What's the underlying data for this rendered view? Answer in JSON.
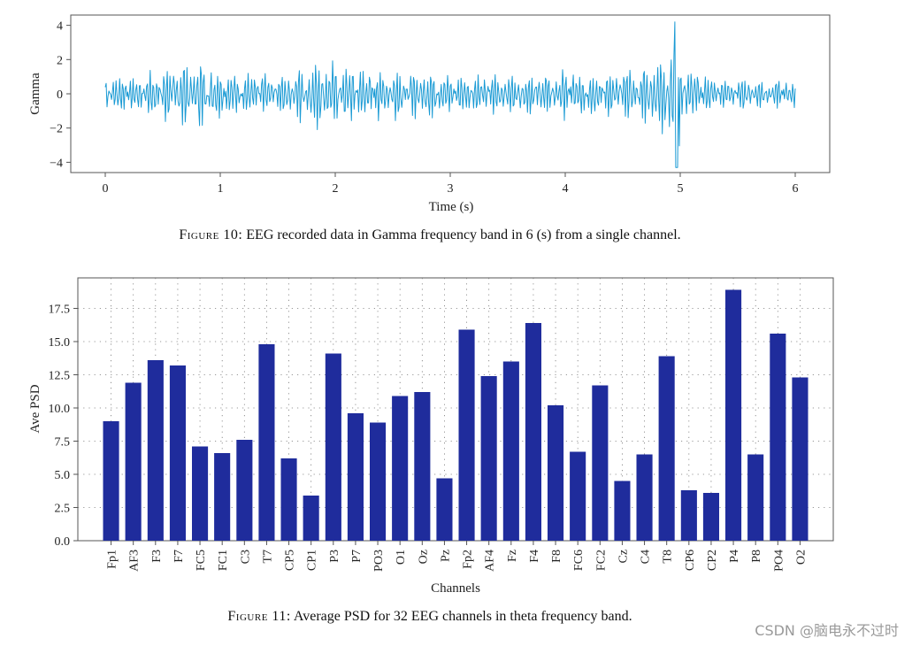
{
  "figure10": {
    "caption_label": "Figure 10:",
    "caption_text": " EEG recorded data in Gamma frequency band in 6 (s) from a single channel.",
    "chart_data": {
      "type": "line",
      "title": "",
      "xlabel": "Time (s)",
      "ylabel": "Gamma",
      "xlim": [
        -0.3,
        6.3
      ],
      "ylim": [
        -4.6,
        4.6
      ],
      "xticks": [
        0,
        1,
        2,
        3,
        4,
        5,
        6
      ],
      "yticks": [
        -4,
        -2,
        0,
        2,
        4
      ],
      "line_color": "#1a9ad4",
      "sample_rate_hz": 128,
      "duration_s": 6,
      "envelope": {
        "t": [
          0.0,
          0.3,
          0.45,
          0.6,
          0.7,
          0.8,
          1.0,
          1.3,
          1.6,
          1.8,
          1.9,
          2.0,
          2.2,
          2.5,
          2.8,
          3.0,
          3.3,
          3.6,
          3.8,
          4.0,
          4.3,
          4.6,
          4.75,
          4.85,
          4.95,
          5.0,
          5.1,
          5.3,
          5.6,
          6.0
        ],
        "amp": [
          0.9,
          1.1,
          1.2,
          1.7,
          2.0,
          1.9,
          1.2,
          1.0,
          1.2,
          1.6,
          2.0,
          1.7,
          1.4,
          1.2,
          1.3,
          1.1,
          1.0,
          1.1,
          1.1,
          1.3,
          1.1,
          1.4,
          1.8,
          1.9,
          3.9,
          2.1,
          1.3,
          0.9,
          0.8,
          0.7
        ]
      }
    }
  },
  "figure11": {
    "caption_label": "Figure 11:",
    "caption_text": " Average PSD for 32 EEG channels in theta frequency band.",
    "chart_data": {
      "type": "bar",
      "title": "",
      "xlabel": "Channels",
      "ylabel": "Ave PSD",
      "ylim": [
        0,
        19.8
      ],
      "yticks": [
        0.0,
        2.5,
        5.0,
        7.5,
        10.0,
        12.5,
        15.0,
        17.5
      ],
      "ytick_labels": [
        "0.0",
        "2.5",
        "5.0",
        "7.5",
        "10.0",
        "12.5",
        "15.0",
        "17.5"
      ],
      "grid": "dotted",
      "bar_color": "#1f2c9c",
      "categories": [
        "Fp1",
        "AF3",
        "F3",
        "F7",
        "FC5",
        "FC1",
        "C3",
        "T7",
        "CP5",
        "CP1",
        "P3",
        "P7",
        "PO3",
        "O1",
        "Oz",
        "Pz",
        "Fp2",
        "AF4",
        "Fz",
        "F4",
        "F8",
        "FC6",
        "FC2",
        "Cz",
        "C4",
        "T8",
        "CP6",
        "CP2",
        "P4",
        "P8",
        "PO4",
        "O2"
      ],
      "values": [
        9.0,
        11.9,
        13.6,
        13.2,
        7.1,
        6.6,
        7.6,
        14.8,
        6.2,
        3.4,
        14.1,
        9.6,
        8.9,
        10.9,
        11.2,
        4.7,
        15.9,
        12.4,
        13.5,
        16.4,
        10.2,
        6.7,
        11.7,
        4.5,
        6.5,
        13.9,
        3.8,
        3.6,
        18.9,
        6.5,
        15.6,
        12.3
      ]
    }
  },
  "watermark": "CSDN @脑电永不过时"
}
